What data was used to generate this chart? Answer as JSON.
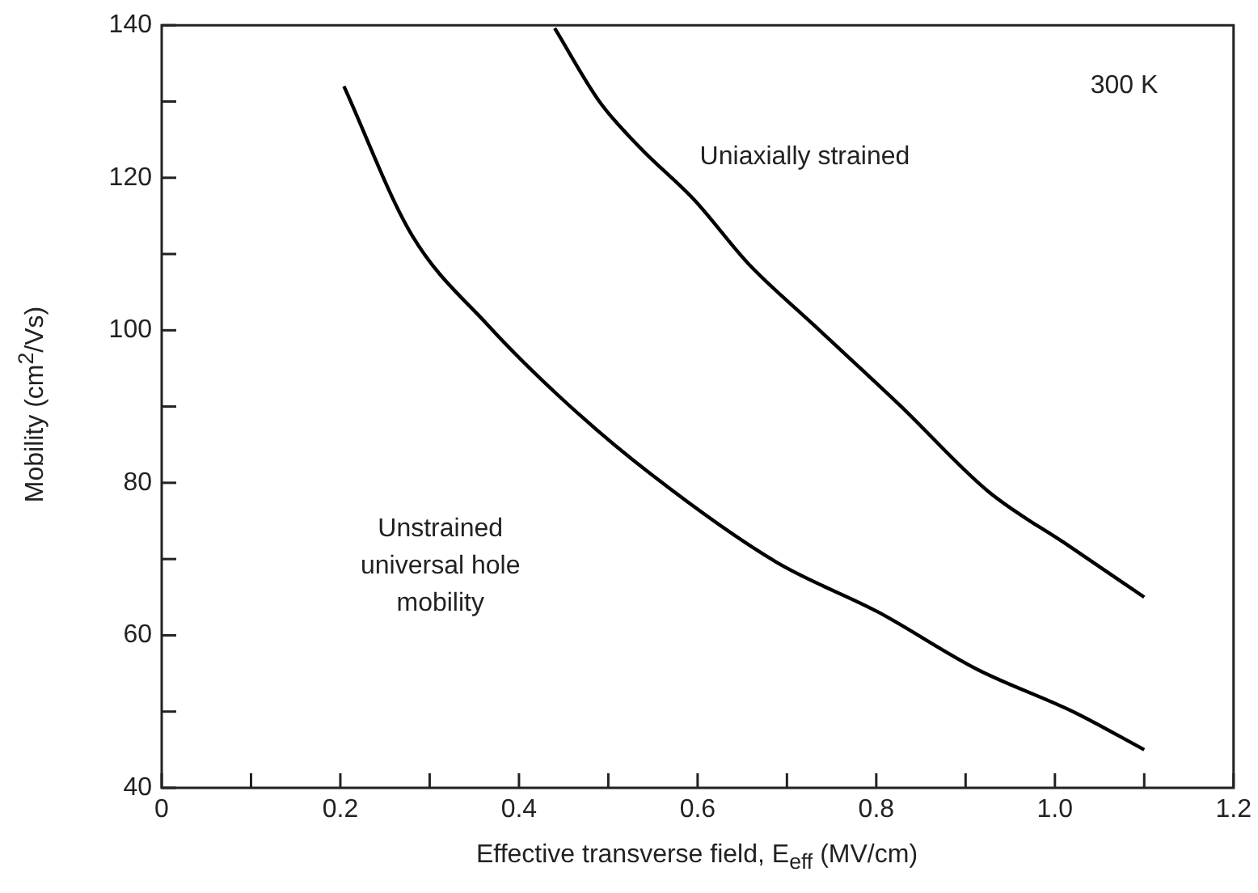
{
  "chart_data": {
    "type": "line",
    "xlabel": "Effective transverse field, E$_{eff}$ (MV/cm)",
    "ylabel": "Mobility (cm$^{2}$/Vs)",
    "series": [
      {
        "color": "#000000",
        "x": [
          0.204,
          0.279,
          0.365,
          0.451,
          0.547,
          0.688,
          0.803,
          0.912,
          1.022,
          1.1
        ],
        "values": [
          132,
          112.7,
          100.7,
          90.7,
          81.2,
          69.6,
          63,
          55.6,
          49.9,
          45
        ]
      },
      {
        "color": "#000000",
        "x": [
          0.44,
          0.49,
          0.535,
          0.597,
          0.657,
          0.73,
          0.827,
          0.925,
          1.016,
          1.1
        ],
        "values": [
          139.6,
          130,
          124,
          117,
          108.7,
          100.7,
          90.1,
          78.9,
          71.7,
          65
        ]
      }
    ],
    "xlim": [
      0,
      1.2
    ],
    "xticks": [
      0,
      {
        "value": 0.1,
        "label": null
      },
      0.2,
      {
        "value": 0.3,
        "label": null
      },
      0.4,
      {
        "value": 0.5,
        "label": null
      },
      0.6,
      {
        "value": 0.7,
        "label": null
      },
      0.8,
      {
        "value": 0.9,
        "label": null
      },
      {
        "value": 1.0,
        "label": "1.0"
      },
      {
        "value": 1.1,
        "label": null
      },
      1.2
    ],
    "ylim": [
      40,
      140
    ],
    "yticks": [
      40,
      {
        "value": 50,
        "label": null
      },
      60,
      {
        "value": 70,
        "label": null
      },
      80,
      {
        "value": 90,
        "label": null
      },
      100,
      {
        "value": 110,
        "label": null
      },
      120,
      {
        "value": 130,
        "label": null
      },
      140
    ],
    "annotations": [
      "Unstrained universal hole mobility",
      "Uniaxially strained",
      "300 K"
    ],
    "legend": false,
    "marker": "none",
    "line_style": "solid"
  }
}
